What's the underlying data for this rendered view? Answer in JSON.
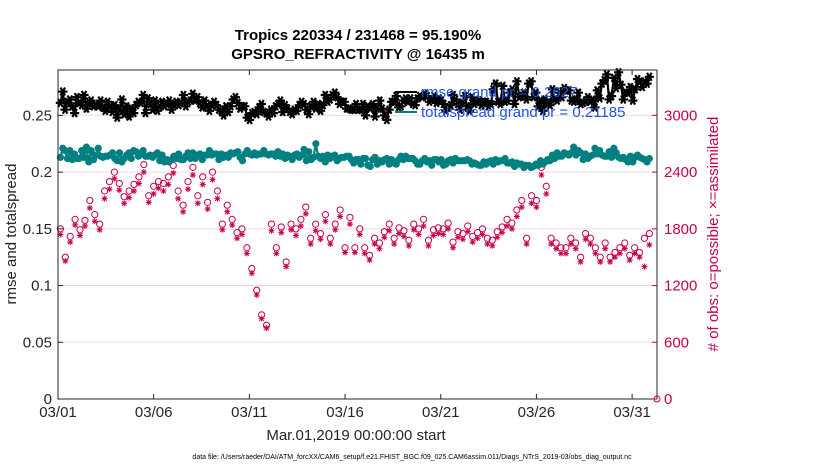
{
  "chart_data": {
    "type": "line",
    "title": "Tropics 220334 / 231468 = 95.190%",
    "subtitle": "GPSRO_REFRACTIVITY @ 16435 m",
    "xlabel": "Mar.01,2019 00:00:00 start",
    "ylabel": "rmse and totalspread",
    "ylabel_right": "# of obs: o=possible; ×=assimilated",
    "footer": "data file: /Users/raeder/DAI/ATM_forcXX/CAM6_setup/f.e21.FHIST_BGC.f09_025.CAM6assim.011/Diags_NTrS_2019-03/obs_diag_output.nc",
    "x_ticks": [
      "03/01",
      "03/06",
      "03/11",
      "03/16",
      "03/21",
      "03/26",
      "03/31"
    ],
    "y_ticks": [
      "0",
      "0.05",
      "0.1",
      "0.15",
      "0.2",
      "0.25"
    ],
    "y2_ticks": [
      "0",
      "600",
      "1200",
      "1800",
      "2400",
      "3000"
    ],
    "xlim": [
      0,
      31.3
    ],
    "ylim": [
      0,
      0.29
    ],
    "y2lim": [
      0,
      3480
    ],
    "legend": [
      "rmse grand pr = 0.2627",
      "totalspread grand pr = 0.21185"
    ],
    "legend_location": "top-right",
    "series": [
      {
        "name": "rmse",
        "color": "#000000",
        "marker": "asterisk",
        "values": [
          0.261,
          0.271,
          0.255,
          0.262,
          0.264,
          0.258,
          0.252,
          0.266,
          0.261,
          0.259,
          0.268,
          0.256,
          0.262,
          0.263,
          0.258,
          0.259,
          0.258,
          0.263,
          0.257,
          0.254,
          0.262,
          0.258,
          0.253,
          0.259,
          0.248,
          0.255,
          0.264,
          0.251,
          0.258,
          0.249,
          0.256,
          0.252,
          0.259,
          0.262,
          0.261,
          0.268,
          0.252,
          0.265,
          0.26,
          0.255,
          0.263,
          0.254,
          0.258,
          0.262,
          0.258,
          0.26,
          0.263,
          0.255,
          0.259,
          0.262,
          0.259,
          0.261,
          0.268,
          0.258,
          0.262,
          0.263,
          0.269,
          0.263,
          0.266,
          0.261,
          0.257,
          0.263,
          0.258,
          0.254,
          0.259,
          0.262,
          0.259,
          0.255,
          0.254,
          0.25,
          0.258,
          0.253,
          0.258,
          0.264,
          0.266,
          0.261,
          0.256,
          0.258,
          0.258,
          0.248,
          0.246,
          0.252,
          0.253,
          0.251,
          0.257,
          0.26,
          0.253,
          0.252,
          0.249,
          0.255,
          0.252,
          0.258,
          0.26,
          0.263,
          0.253,
          0.259,
          0.256,
          0.253,
          0.251,
          0.255,
          0.254,
          0.259,
          0.262,
          0.26,
          0.255,
          0.251,
          0.258,
          0.262,
          0.256,
          0.26,
          0.254,
          0.259,
          0.268,
          0.262,
          0.264,
          0.268,
          0.27,
          0.266,
          0.26,
          0.262,
          0.262,
          0.256,
          0.256,
          0.255,
          0.255,
          0.26,
          0.255,
          0.255,
          0.26,
          0.25,
          0.258,
          0.256,
          0.26,
          0.249,
          0.256,
          0.263,
          0.256,
          0.25,
          0.246,
          0.255,
          0.262,
          0.262,
          0.267,
          0.257,
          0.258,
          0.263,
          0.265,
          0.262,
          0.265,
          0.26,
          0.259,
          0.265,
          0.267,
          0.266,
          0.269,
          0.267,
          0.262,
          0.264,
          0.267,
          0.261,
          0.265,
          0.263,
          0.26,
          0.254,
          0.257,
          0.259,
          0.268,
          0.264,
          0.26,
          0.255,
          0.261,
          0.267,
          0.258,
          0.254,
          0.266,
          0.26,
          0.262,
          0.263,
          0.259,
          0.262,
          0.262,
          0.258,
          0.26,
          0.273,
          0.278,
          0.262,
          0.26,
          0.276,
          0.262,
          0.263,
          0.27,
          0.273,
          0.26,
          0.28,
          0.266,
          0.267,
          0.27,
          0.264,
          0.278,
          0.28,
          0.266,
          0.27,
          0.258,
          0.263,
          0.254,
          0.264,
          0.26,
          0.259,
          0.273,
          0.264,
          0.263,
          0.27,
          0.266,
          0.274,
          0.272,
          0.272,
          0.263,
          0.262,
          0.264,
          0.27,
          0.26,
          0.261,
          0.262,
          0.266,
          0.262,
          0.264,
          0.257,
          0.272,
          0.265,
          0.278,
          0.281,
          0.286,
          0.264,
          0.267,
          0.283,
          0.274,
          0.288,
          0.277,
          0.264,
          0.27,
          0.27,
          0.275,
          0.263,
          0.273,
          0.282,
          0.28,
          0.275,
          0.28,
          0.278,
          0.284
        ]
      },
      {
        "name": "totalspread",
        "color": "#008080",
        "marker": "dot",
        "values": [
          0.213,
          0.221,
          0.219,
          0.212,
          0.219,
          0.211,
          0.216,
          0.212,
          0.212,
          0.219,
          0.213,
          0.222,
          0.209,
          0.219,
          0.211,
          0.215,
          0.221,
          0.214,
          0.213,
          0.214,
          0.214,
          0.215,
          0.217,
          0.212,
          0.21,
          0.217,
          0.209,
          0.212,
          0.215,
          0.217,
          0.212,
          0.219,
          0.218,
          0.214,
          0.216,
          0.219,
          0.214,
          0.214,
          0.215,
          0.213,
          0.215,
          0.217,
          0.21,
          0.215,
          0.209,
          0.211,
          0.209,
          0.211,
          0.214,
          0.212,
          0.216,
          0.211,
          0.211,
          0.214,
          0.217,
          0.212,
          0.217,
          0.212,
          0.215,
          0.216,
          0.211,
          0.215,
          0.215,
          0.219,
          0.215,
          0.216,
          0.216,
          0.211,
          0.216,
          0.213,
          0.215,
          0.213,
          0.217,
          0.216,
          0.217,
          0.218,
          0.213,
          0.21,
          0.216,
          0.219,
          0.216,
          0.215,
          0.217,
          0.215,
          0.216,
          0.216,
          0.219,
          0.216,
          0.215,
          0.216,
          0.216,
          0.214,
          0.218,
          0.214,
          0.216,
          0.212,
          0.215,
          0.214,
          0.211,
          0.215,
          0.216,
          0.213,
          0.215,
          0.22,
          0.21,
          0.218,
          0.211,
          0.213,
          0.225,
          0.214,
          0.212,
          0.214,
          0.209,
          0.215,
          0.212,
          0.214,
          0.215,
          0.21,
          0.212,
          0.213,
          0.213,
          0.214,
          0.214,
          0.211,
          0.208,
          0.211,
          0.211,
          0.207,
          0.212,
          0.212,
          0.206,
          0.205,
          0.211,
          0.213,
          0.207,
          0.21,
          0.209,
          0.211,
          0.212,
          0.207,
          0.211,
          0.208,
          0.207,
          0.211,
          0.214,
          0.211,
          0.214,
          0.212,
          0.212,
          0.212,
          0.21,
          0.207,
          0.207,
          0.21,
          0.212,
          0.209,
          0.21,
          0.206,
          0.211,
          0.211,
          0.209,
          0.211,
          0.206,
          0.207,
          0.21,
          0.211,
          0.208,
          0.212,
          0.21,
          0.21,
          0.21,
          0.21,
          0.211,
          0.21,
          0.207,
          0.208,
          0.207,
          0.206,
          0.206,
          0.209,
          0.207,
          0.209,
          0.21,
          0.207,
          0.211,
          0.209,
          0.21,
          0.21,
          0.212,
          0.208,
          0.208,
          0.209,
          0.205,
          0.208,
          0.207,
          0.207,
          0.204,
          0.206,
          0.206,
          0.204,
          0.205,
          0.207,
          0.206,
          0.21,
          0.207,
          0.209,
          0.211,
          0.21,
          0.215,
          0.212,
          0.217,
          0.214,
          0.214,
          0.217,
          0.216,
          0.215,
          0.217,
          0.222,
          0.215,
          0.219,
          0.217,
          0.211,
          0.216,
          0.212,
          0.214,
          0.215,
          0.221,
          0.216,
          0.219,
          0.215,
          0.214,
          0.214,
          0.218,
          0.213,
          0.221,
          0.217,
          0.213,
          0.212,
          0.213,
          0.211,
          0.209,
          0.214,
          0.209,
          0.213,
          0.215,
          0.213,
          0.212,
          0.211,
          0.209,
          0.212
        ]
      },
      {
        "name": "possible",
        "color": "#c8004f",
        "marker": "circle",
        "values": [
          1800,
          1500,
          1720,
          1900,
          1790,
          1890,
          2100,
          1950,
          1850,
          2200,
          2300,
          2400,
          2280,
          2140,
          2200,
          2270,
          2350,
          2480,
          2150,
          2250,
          2300,
          2280,
          2350,
          2470,
          2200,
          2050,
          2300,
          2450,
          2150,
          2350,
          2080,
          2400,
          2200,
          1850,
          2050,
          1900,
          1760,
          1800,
          1600,
          1380,
          1150,
          890,
          780,
          1850,
          1600,
          1820,
          1450,
          1850,
          1800,
          1900,
          2030,
          1700,
          1850,
          1750,
          1950,
          1700,
          1850,
          2000,
          1600,
          1920,
          1600,
          1800,
          1600,
          1520,
          1700,
          1650,
          1770,
          1850,
          1700,
          1810,
          1780,
          1680,
          1850,
          1800,
          1900,
          1680,
          1790,
          1810,
          1800,
          1860,
          1660,
          1770,
          1750,
          1830,
          1720,
          1760,
          1800,
          1700,
          1680,
          1770,
          1820,
          1900,
          1860,
          2000,
          2100,
          1700,
          2150,
          2100,
          2450,
          2250,
          1700,
          1650,
          1600,
          1600,
          1700,
          1650,
          1500,
          1750,
          1700,
          1600,
          1500,
          1650,
          1500,
          1550,
          1600,
          1650,
          1520,
          1600,
          1550,
          1700,
          1750
        ]
      },
      {
        "name": "assimilated",
        "color": "#c8004f",
        "marker": "x",
        "values": [
          1740,
          1460,
          1660,
          1840,
          1730,
          1830,
          2020,
          1880,
          1790,
          2120,
          2220,
          2330,
          2210,
          2070,
          2130,
          2200,
          2280,
          2400,
          2080,
          2170,
          2230,
          2200,
          2270,
          2390,
          2120,
          1980,
          2220,
          2370,
          2070,
          2270,
          2010,
          2320,
          2120,
          1790,
          1980,
          1840,
          1700,
          1740,
          1540,
          1330,
          1100,
          850,
          750,
          1780,
          1540,
          1760,
          1400,
          1790,
          1730,
          1830,
          1960,
          1640,
          1780,
          1690,
          1880,
          1640,
          1790,
          1930,
          1550,
          1850,
          1550,
          1740,
          1540,
          1470,
          1640,
          1590,
          1710,
          1780,
          1640,
          1750,
          1720,
          1620,
          1790,
          1740,
          1830,
          1620,
          1730,
          1750,
          1740,
          1800,
          1600,
          1710,
          1690,
          1770,
          1660,
          1700,
          1740,
          1640,
          1620,
          1710,
          1760,
          1830,
          1800,
          1930,
          2030,
          1640,
          2070,
          2030,
          2370,
          2170,
          1640,
          1590,
          1540,
          1540,
          1640,
          1590,
          1450,
          1690,
          1640,
          1540,
          1450,
          1590,
          1450,
          1500,
          1540,
          1590,
          1470,
          1540,
          1500,
          1400,
          1630
        ]
      }
    ]
  }
}
